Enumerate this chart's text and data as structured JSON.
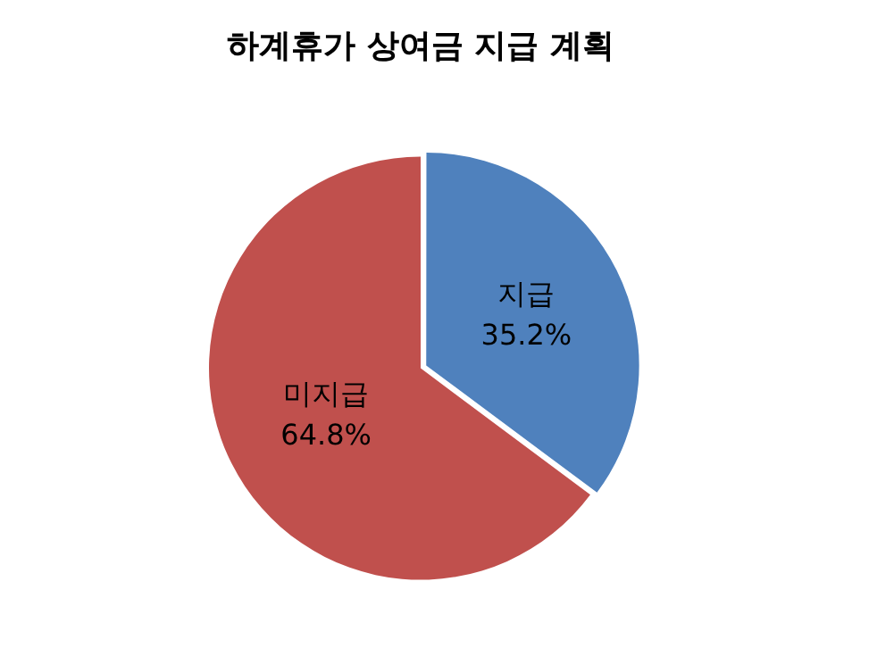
{
  "chart_data": {
    "type": "pie",
    "title": "하계휴가 상여금 지급 계획",
    "categories": [
      "지급",
      "미지급"
    ],
    "values": [
      35.2,
      64.8
    ],
    "colors": [
      "#4f81bd",
      "#c0504d"
    ],
    "value_labels": [
      "35.2%",
      "64.8%"
    ],
    "legend": false
  }
}
